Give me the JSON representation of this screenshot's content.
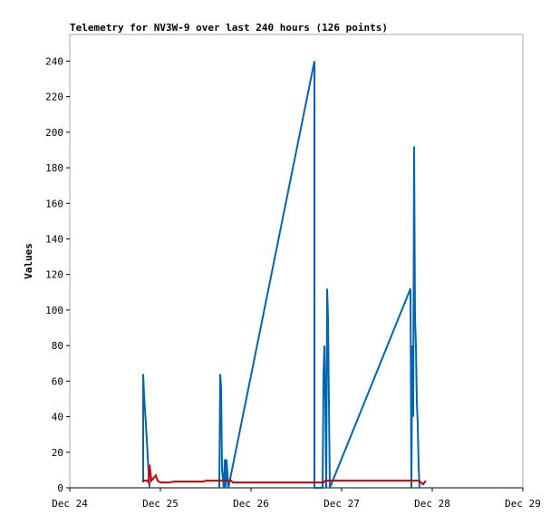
{
  "chart_data": {
    "type": "line",
    "title": "Telemetry for NV3W-9 over last 240 hours (126 points)",
    "ylabel": "Values",
    "xlim": [
      0,
      5
    ],
    "xticks": [
      {
        "value": 0,
        "label": "Dec 24"
      },
      {
        "value": 1,
        "label": "Dec 25"
      },
      {
        "value": 2,
        "label": "Dec 26"
      },
      {
        "value": 3,
        "label": "Dec 27"
      },
      {
        "value": 4,
        "label": "Dec 28"
      },
      {
        "value": 5,
        "label": "Dec 29"
      }
    ],
    "ylim": [
      0,
      255
    ],
    "yticks": [
      0,
      20,
      40,
      60,
      80,
      100,
      120,
      140,
      160,
      180,
      200,
      220,
      240
    ],
    "series": [
      {
        "color": "#0066b3",
        "x": [
          0.81,
          0.81,
          0.82,
          0.84,
          0.88,
          0.89,
          1.65,
          1.66,
          1.67,
          1.68,
          1.7,
          1.71,
          1.72,
          1.73,
          1.75,
          2.7,
          2.7,
          2.79,
          2.8,
          2.81,
          2.82,
          2.83,
          2.84,
          2.85,
          2.86,
          2.87,
          3.76,
          3.77,
          3.78,
          3.79,
          3.8,
          3.81,
          3.82,
          3.83,
          3.84,
          3.85,
          3.86
        ],
        "values": [
          3,
          64,
          52,
          36,
          0,
          null,
          0,
          64,
          56,
          10,
          0,
          16,
          0,
          16,
          0,
          240,
          0,
          0,
          64,
          80,
          48,
          0,
          112,
          96,
          48,
          0,
          112,
          0,
          80,
          40,
          192,
          96,
          80,
          48,
          36,
          12,
          0
        ]
      },
      {
        "color": "#cc0000",
        "x": [
          0.8,
          0.86,
          0.87,
          0.88,
          0.9,
          0.95,
          0.97,
          1.0,
          1.1,
          1.15,
          1.48,
          1.5,
          1.78,
          1.8,
          2.8,
          2.82,
          3.85,
          3.9,
          3.93
        ],
        "values": [
          4,
          4,
          3,
          13,
          4,
          7,
          4,
          3,
          3,
          3.5,
          3.5,
          4,
          4,
          3,
          3,
          4,
          4,
          2,
          4
        ]
      }
    ]
  }
}
